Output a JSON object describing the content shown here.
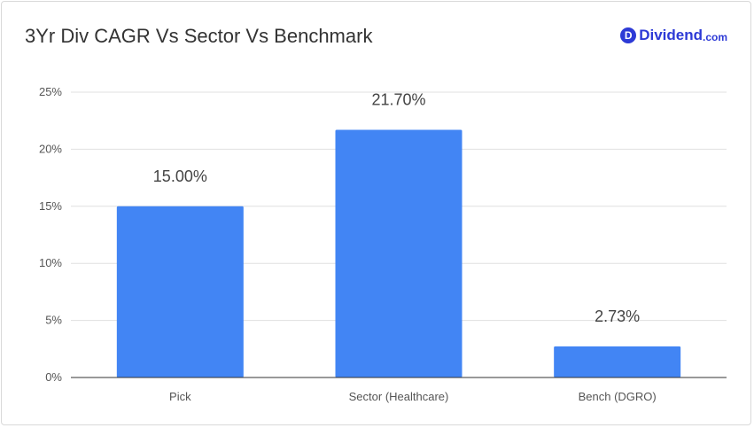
{
  "header": {
    "brand_initial": "D",
    "brand_name": "Dividend",
    "brand_tld": ".com",
    "brand_color": "#2d3ad6"
  },
  "chart_data": {
    "type": "bar",
    "title": "3Yr Div CAGR Vs Sector Vs Benchmark",
    "categories": [
      "Pick",
      "Sector (Healthcare)",
      "Bench (DGRO)"
    ],
    "values": [
      15.0,
      21.7,
      2.73
    ],
    "data_labels": [
      "15.00%",
      "21.70%",
      "2.73%"
    ],
    "ylim": [
      0,
      25
    ],
    "y_ticks": [
      0,
      5,
      10,
      15,
      20,
      25
    ],
    "y_tick_labels": [
      "0%",
      "5%",
      "10%",
      "15%",
      "20%",
      "25%"
    ],
    "xlabel": "",
    "ylabel": "",
    "grid": true,
    "bar_color": "#4285f4"
  }
}
